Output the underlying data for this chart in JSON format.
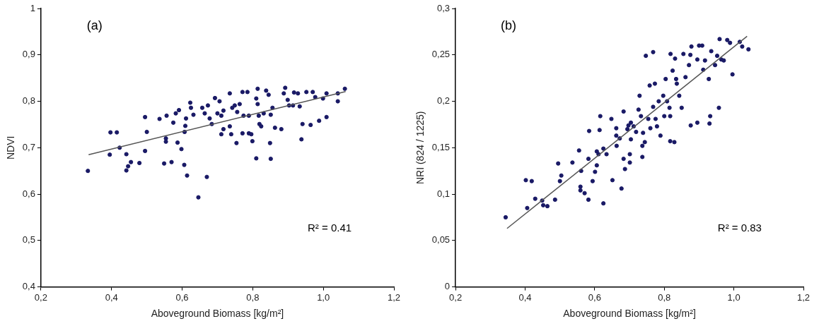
{
  "chart_data": [
    {
      "type": "scatter",
      "xlabel": "Aboveground Biomass [kg/m²]",
      "ylabel": "NDVI",
      "annotations": [
        "(a)",
        "R² = 0.41"
      ],
      "grid": false,
      "xlim": [
        0.2,
        1.2
      ],
      "xticks": [
        {
          "value": 0.2,
          "label": "0,2"
        },
        {
          "value": 0.4,
          "label": "0,4"
        },
        {
          "value": 0.6,
          "label": "0,6"
        },
        {
          "value": 0.8,
          "label": "0,8"
        },
        {
          "value": 1.0,
          "label": "1,0"
        },
        {
          "value": 1.2,
          "label": "1,2"
        }
      ],
      "ylim": [
        0.4,
        1
      ],
      "yticks": [
        {
          "value": 0.4,
          "label": "0,4"
        },
        {
          "value": 0.5,
          "label": "0,5"
        },
        {
          "value": 0.6,
          "label": "0,6"
        },
        {
          "value": 0.7,
          "label": "0,7"
        },
        {
          "value": 0.8,
          "label": "0,8"
        },
        {
          "value": 0.9,
          "label": "0,9"
        },
        1
      ],
      "series": [
        {
          "type": "scatter",
          "marker": "circle",
          "color": "#1a1a66",
          "x": [
            0.333,
            0.395,
            0.397,
            0.415,
            0.423,
            0.442,
            0.442,
            0.447,
            0.455,
            0.479,
            0.495,
            0.5,
            0.495,
            0.536,
            0.556,
            0.554,
            0.554,
            0.549,
            0.57,
            0.575,
            0.582,
            0.591,
            0.587,
            0.598,
            0.606,
            0.611,
            0.609,
            0.607,
            0.614,
            0.623,
            0.625,
            0.632,
            0.646,
            0.67,
            0.657,
            0.664,
            0.673,
            0.678,
            0.684,
            0.693,
            0.7,
            0.706,
            0.711,
            0.717,
            0.711,
            0.717,
            0.735,
            0.742,
            0.735,
            0.749,
            0.756,
            0.763,
            0.739,
            0.754,
            0.771,
            0.774,
            0.771,
            0.785,
            0.789,
            0.789,
            0.796,
            0.799,
            0.81,
            0.814,
            0.81,
            0.814,
            0.817,
            0.819,
            0.824,
            0.831,
            0.838,
            0.845,
            0.851,
            0.849,
            0.851,
            0.856,
            0.863,
            0.881,
            0.892,
            0.888,
            0.899,
            0.903,
            0.914,
            0.917,
            0.928,
            0.933,
            0.938,
            0.941,
            0.952,
            0.964,
            0.97,
            0.977,
            0.988,
            0.999,
            1.009,
            1.009,
            1.041,
            1.041,
            1.061
          ],
          "values": [
            0.65,
            0.685,
            0.733,
            0.733,
            0.7,
            0.686,
            0.651,
            0.66,
            0.669,
            0.667,
            0.766,
            0.734,
            0.693,
            0.762,
            0.769,
            0.72,
            0.713,
            0.666,
            0.669,
            0.754,
            0.774,
            0.781,
            0.711,
            0.697,
            0.663,
            0.763,
            0.747,
            0.734,
            0.64,
            0.797,
            0.786,
            0.771,
            0.593,
            0.637,
            0.786,
            0.774,
            0.791,
            0.763,
            0.751,
            0.807,
            0.774,
            0.8,
            0.769,
            0.78,
            0.729,
            0.74,
            0.746,
            0.786,
            0.817,
            0.791,
            0.777,
            0.794,
            0.729,
            0.71,
            0.82,
            0.769,
            0.731,
            0.82,
            0.769,
            0.731,
            0.729,
            0.714,
            0.677,
            0.827,
            0.806,
            0.794,
            0.769,
            0.751,
            0.746,
            0.774,
            0.823,
            0.814,
            0.771,
            0.71,
            0.676,
            0.786,
            0.743,
            0.74,
            0.829,
            0.817,
            0.803,
            0.791,
            0.791,
            0.819,
            0.817,
            0.789,
            0.718,
            0.751,
            0.82,
            0.749,
            0.82,
            0.809,
            0.758,
            0.806,
            0.766,
            0.817,
            0.8,
            0.817,
            0.827
          ]
        },
        {
          "type": "line",
          "marker": "none",
          "color": "#555555",
          "x": [
            0.335,
            1.063
          ],
          "values": [
            0.685,
            0.821
          ]
        }
      ]
    },
    {
      "type": "scatter",
      "xlabel": "Aboveground Biomass [kg/m²]",
      "ylabel": "NRI (824 / 1225)",
      "annotations": [
        "(b)",
        "R² = 0.83"
      ],
      "grid": false,
      "xlim": [
        0.2,
        1.2
      ],
      "xticks": [
        {
          "value": 0.2,
          "label": "0,2"
        },
        {
          "value": 0.4,
          "label": "0,4"
        },
        {
          "value": 0.6,
          "label": "0,6"
        },
        {
          "value": 0.8,
          "label": "0,8"
        },
        {
          "value": 1.0,
          "label": "1,0"
        },
        {
          "value": 1.2,
          "label": "1,2"
        }
      ],
      "ylim": [
        0,
        0.3
      ],
      "yticks": [
        0,
        {
          "value": 0.05,
          "label": "0,05"
        },
        {
          "value": 0.1,
          "label": "0,1"
        },
        {
          "value": 0.15,
          "label": "0,15"
        },
        {
          "value": 0.2,
          "label": "0,2"
        },
        {
          "value": 0.25,
          "label": "0,25"
        },
        {
          "value": 0.3,
          "label": "0,3"
        }
      ],
      "series": [
        {
          "type": "scatter",
          "marker": "circle",
          "color": "#1a1a66",
          "x": [
            0.344,
            0.402,
            0.419,
            0.406,
            0.429,
            0.449,
            0.452,
            0.464,
            0.486,
            0.495,
            0.504,
            0.5,
            0.536,
            0.555,
            0.561,
            0.559,
            0.559,
            0.571,
            0.582,
            0.582,
            0.584,
            0.594,
            0.601,
            0.606,
            0.606,
            0.611,
            0.616,
            0.614,
            0.625,
            0.625,
            0.634,
            0.648,
            0.651,
            0.662,
            0.662,
            0.663,
            0.672,
            0.677,
            0.683,
            0.683,
            0.687,
            0.694,
            0.697,
            0.701,
            0.701,
            0.704,
            0.704,
            0.712,
            0.719,
            0.729,
            0.726,
            0.733,
            0.739,
            0.737,
            0.737,
            0.744,
            0.747,
            0.754,
            0.758,
            0.76,
            0.768,
            0.773,
            0.768,
            0.775,
            0.779,
            0.789,
            0.784,
            0.797,
            0.8,
            0.804,
            0.808,
            0.815,
            0.817,
            0.817,
            0.818,
            0.824,
            0.829,
            0.831,
            0.834,
            0.836,
            0.843,
            0.85,
            0.855,
            0.861,
            0.871,
            0.876,
            0.875,
            0.878,
            0.895,
            0.895,
            0.9,
            0.909,
            0.912,
            0.917,
            0.928,
            0.93,
            0.932,
            0.935,
            0.946,
            0.952,
            0.957,
            0.959,
            0.964,
            0.971,
            0.981,
            0.989,
            0.996,
            1.017,
            1.024,
            1.042
          ],
          "values": [
            0.075,
            0.115,
            0.114,
            0.085,
            0.095,
            0.093,
            0.088,
            0.087,
            0.094,
            0.133,
            0.12,
            0.114,
            0.134,
            0.147,
            0.125,
            0.108,
            0.104,
            0.101,
            0.094,
            0.138,
            0.168,
            0.114,
            0.124,
            0.131,
            0.146,
            0.143,
            0.184,
            0.169,
            0.149,
            0.09,
            0.143,
            0.181,
            0.115,
            0.171,
            0.163,
            0.152,
            0.16,
            0.106,
            0.189,
            0.138,
            0.127,
            0.17,
            0.174,
            0.143,
            0.134,
            0.159,
            0.177,
            0.173,
            0.167,
            0.206,
            0.191,
            0.184,
            0.166,
            0.152,
            0.14,
            0.156,
            0.249,
            0.181,
            0.217,
            0.171,
            0.253,
            0.219,
            0.194,
            0.181,
            0.173,
            0.163,
            0.2,
            0.206,
            0.184,
            0.224,
            0.2,
            0.193,
            0.184,
            0.157,
            0.251,
            0.233,
            0.156,
            0.246,
            0.224,
            0.219,
            0.206,
            0.193,
            0.251,
            0.226,
            0.239,
            0.174,
            0.25,
            0.259,
            0.177,
            0.245,
            0.26,
            0.26,
            0.234,
            0.244,
            0.224,
            0.176,
            0.184,
            0.254,
            0.239,
            0.249,
            0.193,
            0.267,
            0.245,
            0.244,
            0.266,
            0.263,
            0.229,
            0.264,
            0.259,
            0.256
          ]
        },
        {
          "type": "line",
          "marker": "none",
          "color": "#555555",
          "x": [
            0.348,
            1.038
          ],
          "values": [
            0.063,
            0.27
          ]
        }
      ]
    }
  ]
}
